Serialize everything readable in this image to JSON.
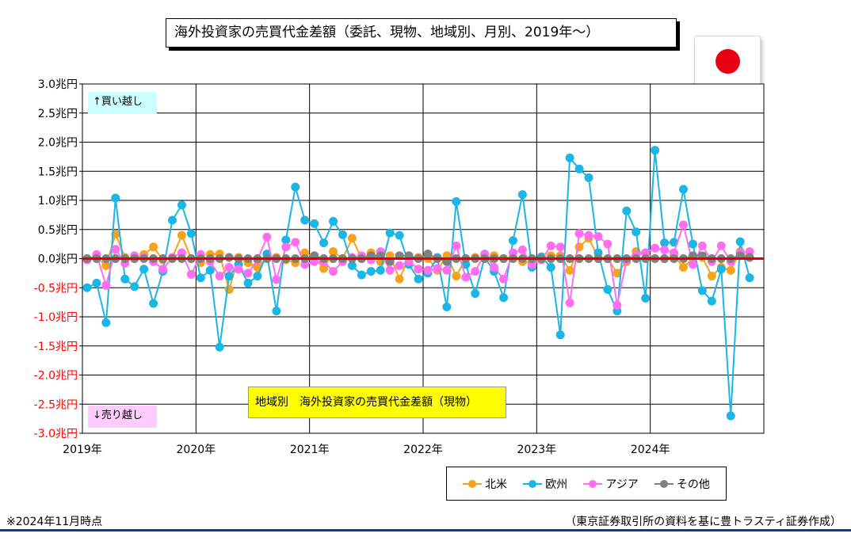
{
  "title": "海外投資家の売買代金差額（委託、現物、地域別、月別、2019年～）",
  "flag": {
    "name": "japan-flag",
    "circle_color": "#e60012"
  },
  "annotations": {
    "buy_label": "↑買い越し",
    "sell_label": "↓売り越し"
  },
  "inner_title": "地域別　海外投資家の売買代金差額（現物）",
  "footnote": "※2024年11月時点",
  "source": "（東京証券取引所の資料を基に豊トラスティ証券作成）",
  "colors": {
    "north_america": "#f7a21b",
    "europe": "#19b6e6",
    "asia": "#ff6ef0",
    "other": "#808080",
    "zero_line": "#e00000",
    "tick_text": "#ff0000"
  },
  "chart_data": {
    "type": "line",
    "title": "地域別　海外投資家の売買代金差額（現物）",
    "ylabel": "",
    "xlabel": "",
    "ylim": [
      -3.0,
      3.0
    ],
    "y_ticks": [
      "3.0兆円",
      "2.5兆円",
      "2.0兆円",
      "1.5兆円",
      "1.0兆円",
      "0.5兆円",
      "0.0兆円",
      "-0.5兆円",
      "-1.0兆円",
      "-1.5兆円",
      "-2.0兆円",
      "-2.5兆円",
      "-3.0兆円"
    ],
    "x_ticks": [
      "2019年",
      "2020年",
      "2021年",
      "2022年",
      "2023年",
      "2024年"
    ],
    "x_start": "2019-01",
    "months": 71,
    "grid": true,
    "legend": "bottom",
    "series": [
      {
        "name": "北米",
        "values": [
          -0.02,
          0.02,
          -0.12,
          0.42,
          0.02,
          0.0,
          0.07,
          0.2,
          -0.02,
          0.02,
          0.4,
          0.0,
          -0.07,
          0.07,
          0.08,
          -0.53,
          0.02,
          -0.07,
          -0.15,
          0.02,
          0.02,
          -0.02,
          -0.07,
          0.1,
          0.02,
          -0.17,
          0.12,
          0.0,
          0.35,
          0.0,
          0.1,
          -0.05,
          0.05,
          -0.35,
          0.02,
          0.02,
          0.0,
          -0.2,
          0.05,
          -0.3,
          0.0,
          0.02,
          0.0,
          0.05,
          0.0,
          0.02,
          -0.05,
          -0.07,
          -0.02,
          0.05,
          0.05,
          -0.2,
          0.2,
          0.35,
          0.02,
          0.0,
          -0.25,
          -0.05,
          0.12,
          0.1,
          0.0,
          0.0,
          0.05,
          -0.15,
          0.0,
          0.02,
          -0.3,
          -0.15,
          -0.2,
          0.12,
          0.02
        ]
      },
      {
        "name": "欧州",
        "values": [
          -0.5,
          -0.42,
          -1.1,
          1.04,
          -0.35,
          -0.48,
          -0.18,
          -0.77,
          -0.22,
          0.66,
          0.92,
          0.43,
          -0.33,
          -0.2,
          -1.52,
          -0.3,
          -0.1,
          -0.42,
          -0.3,
          0.08,
          -0.9,
          0.32,
          1.23,
          0.66,
          0.6,
          0.27,
          0.64,
          0.41,
          -0.12,
          -0.28,
          -0.22,
          -0.2,
          0.44,
          0.4,
          -0.1,
          -0.35,
          -0.25,
          0.02,
          -0.83,
          0.98,
          -0.1,
          -0.6,
          0.02,
          -0.22,
          -0.67,
          0.31,
          1.1,
          -0.15,
          0.03,
          -0.15,
          -1.31,
          1.73,
          1.54,
          1.39,
          0.1,
          -0.53,
          -0.9,
          0.82,
          0.46,
          -0.68,
          1.86,
          0.27,
          0.28,
          1.19,
          0.25,
          -0.55,
          -0.73,
          -0.18,
          -2.7,
          0.29,
          -0.33
        ]
      },
      {
        "name": "アジア",
        "values": [
          -0.02,
          0.07,
          -0.46,
          0.16,
          -0.08,
          0.05,
          0.02,
          -0.05,
          -0.18,
          0.02,
          0.1,
          -0.27,
          0.07,
          -0.05,
          -0.3,
          -0.15,
          -0.18,
          -0.25,
          -0.02,
          0.37,
          -0.36,
          0.2,
          0.28,
          -0.1,
          -0.05,
          -0.05,
          -0.22,
          -0.05,
          0.02,
          0.05,
          -0.02,
          0.12,
          -0.2,
          -0.12,
          -0.05,
          -0.18,
          -0.2,
          -0.17,
          -0.2,
          0.22,
          -0.32,
          -0.22,
          0.08,
          -0.15,
          -0.35,
          0.1,
          0.15,
          -0.1,
          -0.02,
          0.22,
          0.2,
          -0.76,
          0.43,
          0.4,
          0.38,
          0.25,
          -0.8,
          -0.02,
          0.06,
          0.1,
          0.18,
          0.15,
          0.1,
          0.58,
          -0.1,
          0.22,
          -0.05,
          0.22,
          -0.05,
          0.1,
          0.12
        ]
      },
      {
        "name": "その他",
        "values": [
          0.0,
          0.0,
          0.0,
          0.0,
          0.0,
          0.0,
          0.0,
          0.0,
          0.0,
          0.0,
          0.0,
          0.0,
          0.0,
          0.0,
          0.0,
          0.02,
          0.0,
          0.0,
          0.0,
          0.0,
          0.0,
          0.0,
          0.0,
          0.0,
          0.05,
          0.0,
          0.0,
          0.0,
          0.0,
          0.0,
          0.05,
          0.05,
          -0.05,
          0.05,
          0.05,
          0.0,
          0.08,
          0.0,
          -0.05,
          0.0,
          0.0,
          0.0,
          0.0,
          0.0,
          0.0,
          0.0,
          0.0,
          0.0,
          0.0,
          0.0,
          0.0,
          0.0,
          0.0,
          0.0,
          0.0,
          0.0,
          0.0,
          0.0,
          0.0,
          0.0,
          0.0,
          0.0,
          0.0,
          0.0,
          0.05,
          0.05,
          0.0,
          0.0,
          0.0,
          0.05,
          0.02
        ]
      }
    ]
  }
}
